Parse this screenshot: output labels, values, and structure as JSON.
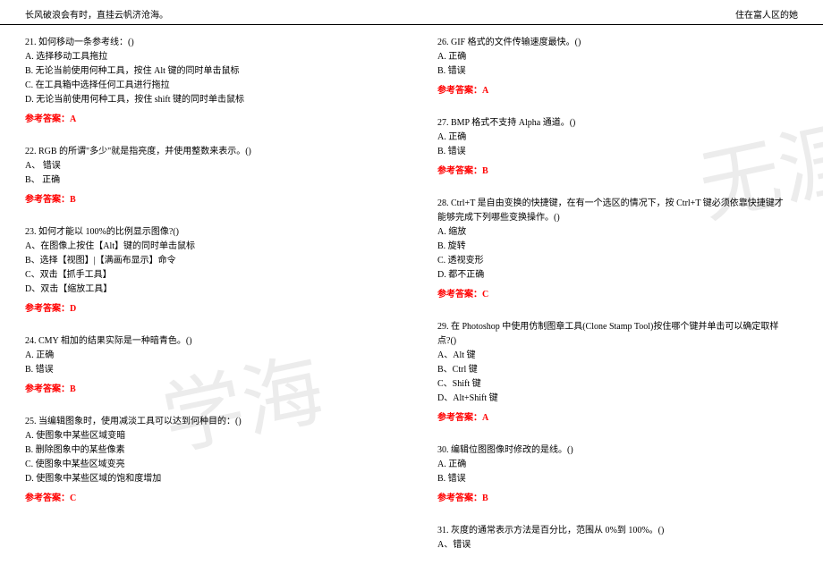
{
  "header": {
    "left": "长风破浪会有时，直挂云帆济沧海。",
    "right": "住在富人区的她"
  },
  "watermark": {
    "text1": "无涯",
    "text2": "学海"
  },
  "left_column": [
    {
      "number": "21",
      "stem": "如何移动一条参考线：()",
      "options": [
        "A. 选择移动工具拖拉",
        "B. 无论当前使用何种工具，按住 Alt 键的同时单击鼠标",
        "C. 在工具箱中选择任何工具进行拖拉",
        "D. 无论当前使用何种工具，按住 shift 键的同时单击鼠标"
      ],
      "answer": "参考答案：A"
    },
    {
      "number": "22",
      "stem": "RGB 的所谓\"多少\"就是指亮度，并使用整数来表示。()",
      "options": [
        "A、 错误",
        "B、 正确"
      ],
      "answer": "参考答案：B"
    },
    {
      "number": "23",
      "stem": "如何才能以 100%的比例显示图像?()",
      "options": [
        "A、在图像上按住【Alt】键的同时单击鼠标",
        "B、选择【视图】|【满画布显示】命令",
        "C、双击【抓手工具】",
        "D、双击【缩放工具】"
      ],
      "answer": "参考答案：D"
    },
    {
      "number": "24",
      "stem": "CMY 相加的结果实际是一种暗青色。()",
      "options": [
        "A. 正确",
        "B. 错误"
      ],
      "answer": "参考答案：B"
    },
    {
      "number": "25",
      "stem": "当编辑图象时，使用减淡工具可以达到何种目的：()",
      "options": [
        "A. 使图象中某些区域变暗",
        "B. 删除图象中的某些像素",
        "C. 使图象中某些区域变亮",
        "D. 使图象中某些区域的饱和度增加"
      ],
      "answer": "参考答案：C"
    }
  ],
  "right_column": [
    {
      "number": "26",
      "stem": "GIF 格式的文件传输速度最快。()",
      "options": [
        "A. 正确",
        "B. 错误"
      ],
      "answer": "参考答案：A"
    },
    {
      "number": "27",
      "stem": "BMP 格式不支持 Alpha 通道。()",
      "options": [
        "A. 正确",
        "B. 错误"
      ],
      "answer": "参考答案：B"
    },
    {
      "number": "28",
      "stem": "Ctrl+T 是自由变换的快捷键，在有一个选区的情况下，按 Ctrl+T 键必须依靠快捷键才能够完成下列哪些变换操作。()",
      "options": [
        "A. 缩放",
        "B. 旋转",
        "C. 透视变形",
        "D. 都不正确"
      ],
      "answer": "参考答案：C"
    },
    {
      "number": "29",
      "stem": "在 Photoshop 中使用仿制图章工具(Clone Stamp Tool)按住哪个键并单击可以确定取样点?()",
      "options": [
        "A、Alt 键",
        "B、Ctrl 键",
        "C、Shift 键",
        "D、Alt+Shift 键"
      ],
      "answer": "参考答案：A"
    },
    {
      "number": "30",
      "stem": "编辑位图图像时修改的是线。()",
      "options": [
        "A. 正确",
        "B. 错误"
      ],
      "answer": "参考答案：B"
    },
    {
      "number": "31",
      "stem": "灰度的通常表示方法是百分比，范围从 0%到 100%。()",
      "options": [
        "A、错误"
      ],
      "answer": ""
    }
  ]
}
